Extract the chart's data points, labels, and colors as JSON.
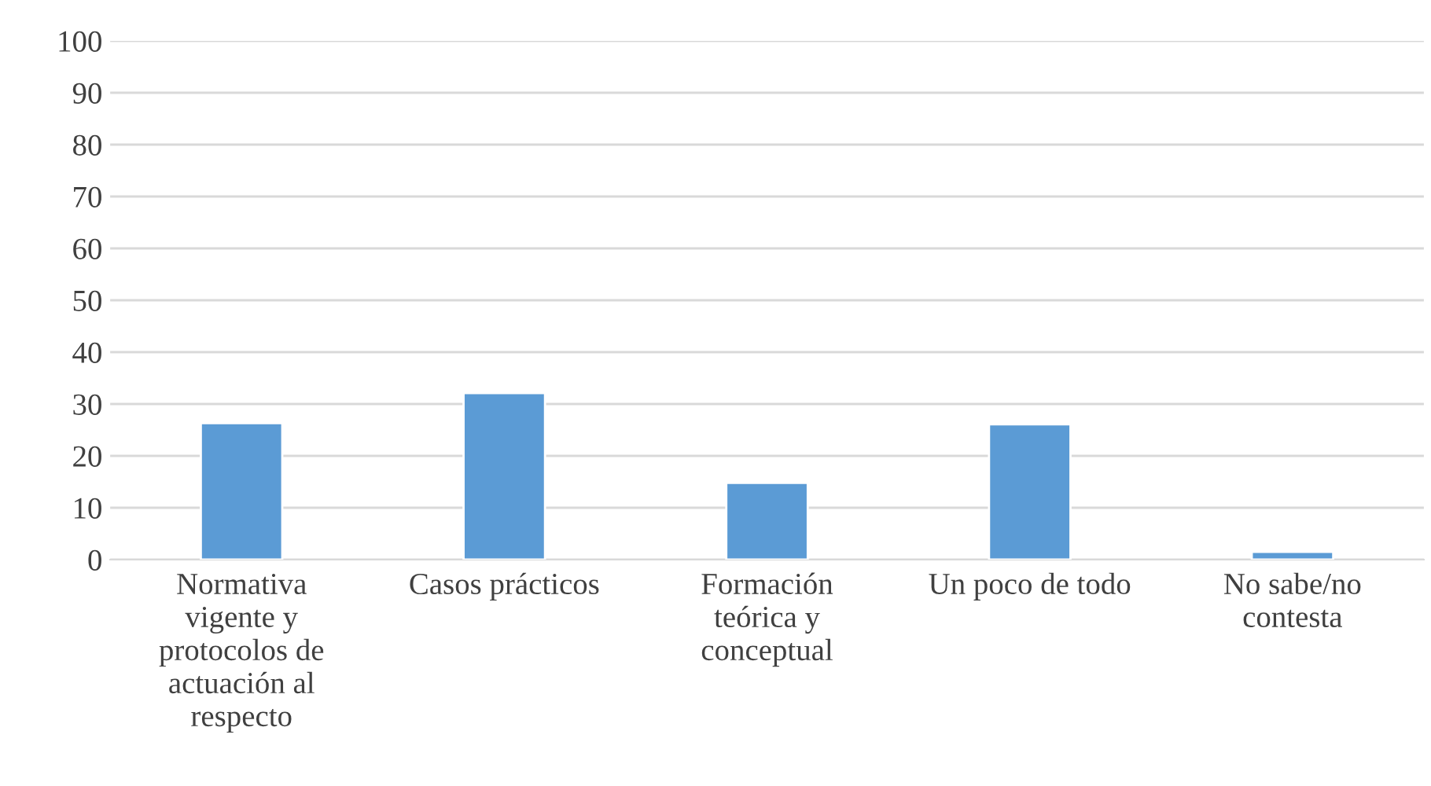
{
  "chart_data": {
    "type": "bar",
    "categories": [
      "Normativa vigente y protocolos de actuación al respecto",
      "Casos prácticos",
      "Formación teórica y conceptual",
      "Un poco de todo",
      "No sabe/no contesta"
    ],
    "values": [
      26.3,
      32.1,
      14.8,
      26.1,
      1.5
    ],
    "color": "#5b9bd5",
    "ylim": [
      0,
      100
    ],
    "yticks": [
      0,
      10,
      20,
      30,
      40,
      50,
      60,
      70,
      80,
      90,
      100
    ],
    "grid": "y"
  }
}
